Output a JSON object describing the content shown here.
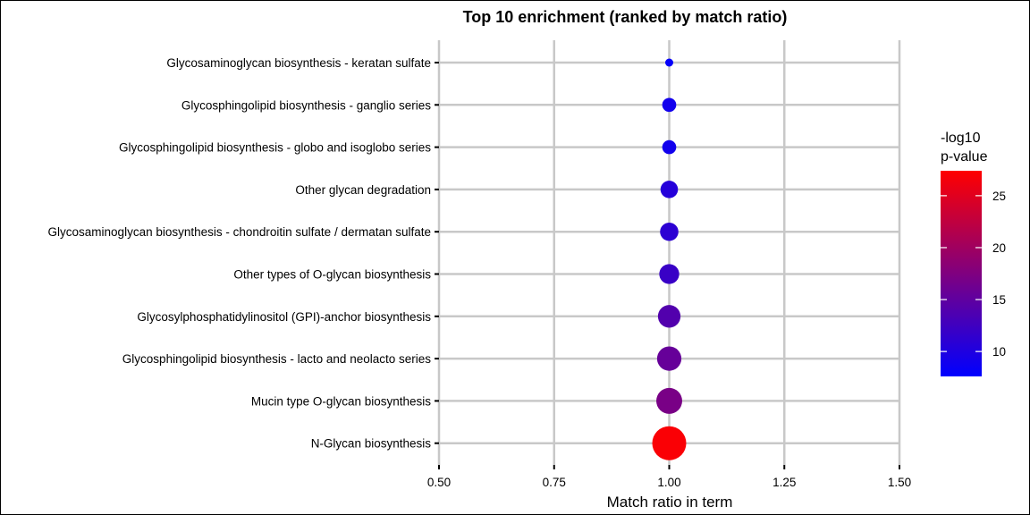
{
  "chart_data": {
    "type": "scatter",
    "title": "Top 10 enrichment (ranked by match ratio)",
    "xlabel": "Match ratio in term",
    "ylabel": "",
    "xlim": [
      0.5,
      1.5
    ],
    "xticks": [
      "0.50",
      "0.75",
      "1.00",
      "1.25",
      "1.50"
    ],
    "grid": true,
    "legend": {
      "title_lines": [
        "-log10",
        "p-value"
      ],
      "ticks": [
        "10",
        "15",
        "20",
        "25"
      ],
      "range": [
        7.6,
        27.4
      ],
      "low_color": "#0000FF",
      "high_color": "#FF0000",
      "position": "right"
    },
    "points": [
      {
        "term": "Glycosaminoglycan biosynthesis - keratan sulfate",
        "match_ratio": 1.0,
        "neg_log10_p": 8.0
      },
      {
        "term": "Glycosphingolipid biosynthesis - ganglio series",
        "match_ratio": 1.0,
        "neg_log10_p": 9.0
      },
      {
        "term": "Glycosphingolipid biosynthesis - globo and isoglobo series",
        "match_ratio": 1.0,
        "neg_log10_p": 9.0
      },
      {
        "term": "Other glycan degradation",
        "match_ratio": 1.0,
        "neg_log10_p": 10.5
      },
      {
        "term": "Glycosaminoglycan biosynthesis - chondroitin sulfate / dermatan sulfate",
        "match_ratio": 1.0,
        "neg_log10_p": 11.0
      },
      {
        "term": "Other types of O-glycan biosynthesis",
        "match_ratio": 1.0,
        "neg_log10_p": 12.0
      },
      {
        "term": "Glycosylphosphatidylinositol (GPI)-anchor biosynthesis",
        "match_ratio": 1.0,
        "neg_log10_p": 14.0
      },
      {
        "term": "Glycosphingolipid biosynthesis - lacto and neolacto series",
        "match_ratio": 1.0,
        "neg_log10_p": 15.5
      },
      {
        "term": "Mucin type O-glycan biosynthesis",
        "match_ratio": 1.0,
        "neg_log10_p": 17.0
      },
      {
        "term": "N-Glycan biosynthesis",
        "match_ratio": 1.0,
        "neg_log10_p": 27.0
      }
    ],
    "colors": {
      "grid": "#c8c8c8",
      "axis": "#000000"
    }
  }
}
